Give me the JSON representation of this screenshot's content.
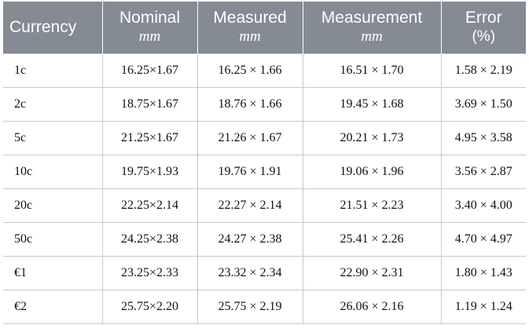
{
  "table": {
    "headers": [
      {
        "title": "Currency",
        "unit": ""
      },
      {
        "title": "Nominal",
        "unit": "mm"
      },
      {
        "title": "Measured",
        "unit": "mm"
      },
      {
        "title": "Measurement",
        "unit": "mm"
      },
      {
        "title": "Error",
        "unit": "(%)"
      }
    ],
    "rows": [
      [
        "1c",
        "16.25×1.67",
        "16.25 × 1.66",
        "16.51 × 1.70",
        "1.58 × 2.19"
      ],
      [
        "2c",
        "18.75×1.67",
        "18.76 × 1.66",
        "19.45 × 1.68",
        "3.69 × 1.50"
      ],
      [
        "5c",
        "21.25×1.67",
        "21.26 × 1.67",
        "20.21 × 1.73",
        "4.95 × 3.58"
      ],
      [
        "10c",
        "19.75×1.93",
        "19.76 × 1.91",
        "19.06 × 1.96",
        "3.56 × 2.87"
      ],
      [
        "20c",
        "22.25×2.14",
        "22.27 × 2.14",
        "21.51 × 2.23",
        "3.40 × 4.00"
      ],
      [
        "50c",
        "24.25×2.38",
        "24.27 × 2.38",
        "25.41 × 2.26",
        "4.70 × 4.97"
      ],
      [
        "€1",
        "23.25×2.33",
        "23.32 × 2.34",
        "22.90 × 2.31",
        "1.80 × 1.43"
      ],
      [
        "€2",
        "25.75×2.20",
        "25.75 × 2.19",
        "26.06 × 2.16",
        "1.19 × 1.24"
      ]
    ]
  }
}
